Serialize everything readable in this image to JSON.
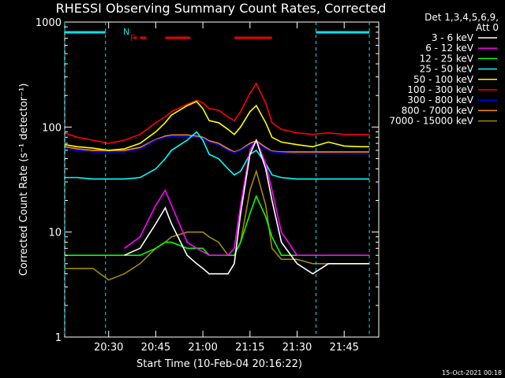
{
  "chart_data": {
    "type": "line",
    "title": "RHESSI Observing Summary Count Rates, Corrected",
    "xlabel": "Start Time (10-Feb-04 20:16:22)",
    "ylabel": "Corrected Count Rate (s⁻¹ detector⁻¹)",
    "xlim": [
      "20:16",
      "21:56"
    ],
    "ylim": [
      1,
      1000
    ],
    "yscale": "log",
    "grid": false,
    "x_ticks": [
      "20:30",
      "20:45",
      "21:00",
      "21:15",
      "21:30",
      "21:45"
    ],
    "y_ticks": [
      "1",
      "10",
      "100",
      "1000"
    ],
    "legend_header": [
      "Det 1,3,4,5,6,9,",
      "Att 0"
    ],
    "legend_placement": "right",
    "footer_date": "15-Oct-2021 00:18",
    "flag_labels": [
      "N",
      "F"
    ],
    "eclipse_marks": [
      {
        "start": "20:16",
        "end": "20:29"
      },
      {
        "start": "21:36",
        "end": "21:53"
      }
    ],
    "flare_marks": [
      {
        "start": "20:38",
        "end": "20:39"
      },
      {
        "start": "20:40",
        "end": "20:42"
      },
      {
        "start": "20:48",
        "end": "20:56"
      },
      {
        "start": "21:10",
        "end": "21:22"
      }
    ],
    "flag_colors": {
      "eclipse": "#00e5ee",
      "flare": "#ee0000"
    },
    "x": [
      "20:16",
      "20:20",
      "20:25",
      "20:30",
      "20:35",
      "20:40",
      "20:45",
      "20:48",
      "20:50",
      "20:55",
      "20:58",
      "21:00",
      "21:02",
      "21:05",
      "21:08",
      "21:10",
      "21:12",
      "21:15",
      "21:17",
      "21:20",
      "21:22",
      "21:25",
      "21:30",
      "21:35",
      "21:40",
      "21:45",
      "21:50",
      "21:53"
    ],
    "series": [
      {
        "name": "3 - 6 keV",
        "color": "#ffffff",
        "values": [
          null,
          null,
          null,
          null,
          6,
          7,
          12,
          17,
          12,
          6,
          5,
          4.5,
          4,
          4,
          4,
          5,
          15,
          55,
          75,
          40,
          20,
          8,
          5,
          4,
          5,
          5,
          5,
          5
        ]
      },
      {
        "name": "6 - 12 keV",
        "color": "#ff00ff",
        "values": [
          null,
          null,
          null,
          null,
          7,
          9,
          18,
          25,
          18,
          8,
          7,
          6.5,
          6,
          6,
          6,
          7,
          18,
          60,
          75,
          45,
          25,
          10,
          6,
          6,
          6,
          6,
          6,
          6
        ]
      },
      {
        "name": "12 - 25 keV",
        "color": "#00ff00",
        "values": [
          6,
          6,
          6,
          6,
          6,
          6,
          7,
          8,
          8,
          7,
          7,
          7,
          6,
          6,
          6,
          6,
          8,
          15,
          22,
          14,
          9,
          6,
          6,
          6,
          6,
          6,
          6,
          6
        ]
      },
      {
        "name": "25 - 50 keV",
        "color": "#00ffff",
        "values": [
          33,
          33,
          32,
          32,
          32,
          33,
          40,
          50,
          60,
          75,
          90,
          75,
          55,
          50,
          40,
          35,
          38,
          55,
          60,
          45,
          35,
          33,
          32,
          32,
          32,
          32,
          32,
          32
        ]
      },
      {
        "name": "50 - 100 keV",
        "color": "#ffff00",
        "values": [
          68,
          65,
          63,
          60,
          62,
          70,
          90,
          110,
          130,
          160,
          175,
          150,
          115,
          110,
          95,
          85,
          100,
          140,
          160,
          110,
          80,
          72,
          68,
          65,
          72,
          66,
          65,
          65
        ]
      },
      {
        "name": "100 - 300 keV",
        "color": "#ff0000",
        "values": [
          88,
          80,
          75,
          70,
          75,
          85,
          110,
          125,
          140,
          165,
          180,
          170,
          150,
          145,
          125,
          115,
          140,
          210,
          260,
          170,
          110,
          95,
          88,
          85,
          88,
          85,
          85,
          85
        ]
      },
      {
        "name": "300 - 800 keV",
        "color": "#0000ff",
        "values": [
          62,
          60,
          58,
          58,
          58,
          62,
          75,
          80,
          82,
          82,
          80,
          78,
          72,
          68,
          60,
          57,
          60,
          68,
          72,
          62,
          58,
          57,
          56,
          56,
          56,
          56,
          56,
          56
        ]
      },
      {
        "name": "800 - 7000 keV",
        "color": "#ff8c00",
        "values": [
          65,
          62,
          60,
          60,
          60,
          64,
          76,
          82,
          84,
          84,
          82,
          80,
          74,
          70,
          62,
          58,
          61,
          70,
          74,
          64,
          59,
          58,
          58,
          58,
          58,
          58,
          58,
          58
        ]
      },
      {
        "name": "7000 - 15000 keV",
        "color": "#a08c00",
        "values": [
          4.5,
          4.5,
          4.5,
          3.5,
          4,
          5,
          7,
          8,
          9,
          10,
          10,
          10,
          9,
          8,
          6,
          6,
          8,
          25,
          38,
          18,
          7,
          5.5,
          5.5,
          5,
          5,
          5,
          5,
          5
        ]
      }
    ]
  }
}
